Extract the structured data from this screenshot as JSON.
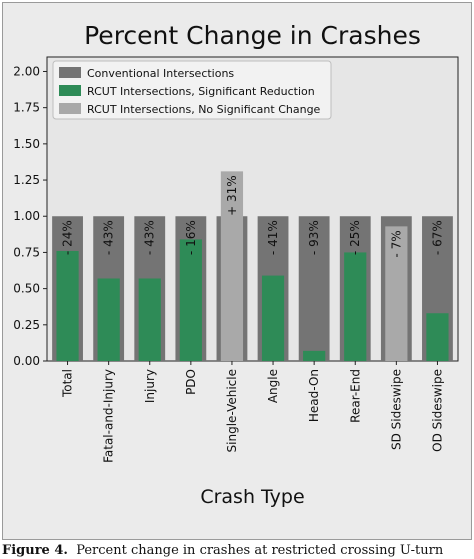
{
  "chart_data": {
    "type": "bar",
    "title": "Percent Change in Crashes",
    "xlabel": "Crash Type",
    "ylabel": "",
    "ylim": [
      0,
      2.1
    ],
    "yticks": [
      "0.00",
      "0.25",
      "0.50",
      "0.75",
      "1.00",
      "1.25",
      "1.50",
      "1.75",
      "2.00"
    ],
    "ytick_values": [
      0,
      0.25,
      0.5,
      0.75,
      1.0,
      1.25,
      1.5,
      1.75,
      2.0
    ],
    "categories": [
      "Total",
      "Fatal-and-Injury",
      "Injury",
      "PDO",
      "Single-Vehicle",
      "Angle",
      "Head-On",
      "Rear-End",
      "SD Sideswipe",
      "OD Sideswipe"
    ],
    "series": [
      {
        "name": "Conventional Intersections",
        "color": "#747474",
        "values": [
          1,
          1,
          1,
          1,
          1,
          1,
          1,
          1,
          1,
          1
        ]
      },
      {
        "name": "RCUT Intersections, Significant Reduction",
        "color": "#2e8b57",
        "values": [
          0.76,
          0.57,
          0.57,
          0.84,
          null,
          0.59,
          0.07,
          0.75,
          null,
          0.33
        ]
      },
      {
        "name": "RCUT Intersections, No Significant Change",
        "color": "#a9a9a9",
        "values": [
          null,
          null,
          null,
          null,
          1.31,
          null,
          null,
          null,
          0.93,
          null
        ]
      }
    ],
    "data_labels": [
      "- 24%",
      "- 43%",
      "- 43%",
      "- 16%",
      "+ 31%",
      "- 41%",
      "- 93%",
      "- 25%",
      "- 7%",
      "- 67%"
    ],
    "legend_position": "top-left",
    "grid": false
  },
  "caption": {
    "label": "Figure 4.",
    "text": "Percent change in crashes at restricted crossing U-turn"
  }
}
